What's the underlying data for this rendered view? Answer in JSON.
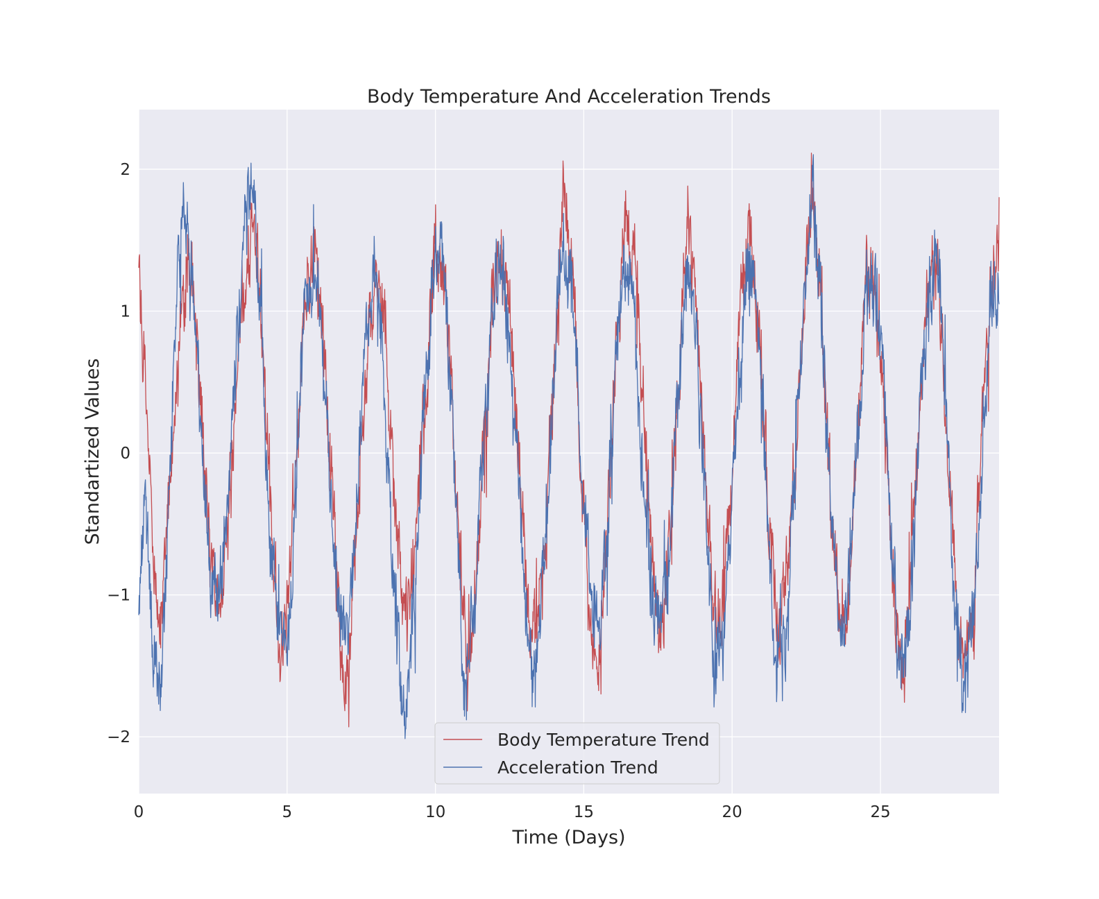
{
  "chart_data": {
    "type": "line",
    "title": "Body Temperature And Acceleration Trends",
    "xlabel": "Time (Days)",
    "ylabel": "Standartized Values",
    "xlim": [
      0,
      29
    ],
    "ylim": [
      -2.4,
      2.42
    ],
    "xticks": [
      0,
      5,
      10,
      15,
      20,
      25
    ],
    "yticks": [
      -2,
      -1,
      0,
      1,
      2
    ],
    "ytick_labels": [
      "−2",
      "−1",
      "0",
      "1",
      "2"
    ],
    "grid": true,
    "legend_position": "lower center",
    "period_days": 2.15,
    "series": [
      {
        "name": "Body Temperature Trend",
        "color": "#c44e52",
        "x": [
          0.0,
          0.25,
          0.5,
          0.6,
          0.8,
          1.0,
          1.3,
          1.6,
          1.8,
          2.1,
          2.4,
          2.7,
          3.0,
          3.3,
          3.6,
          3.9,
          4.2,
          4.5,
          4.8,
          5.0,
          5.3,
          5.6,
          5.9,
          6.2,
          6.5,
          6.8,
          7.0,
          7.2,
          7.5,
          7.8,
          8.1,
          8.4,
          8.7,
          9.0,
          9.3,
          9.7,
          10.0,
          10.3,
          10.6,
          10.9,
          11.1,
          11.4,
          11.7,
          12.0,
          12.2,
          12.6,
          12.9,
          13.2,
          13.5,
          13.8,
          14.1,
          14.3,
          14.6,
          14.9,
          15.2,
          15.5,
          15.8,
          16.1,
          16.4,
          16.8,
          17.1,
          17.4,
          17.7,
          18.0,
          18.3,
          18.5,
          18.8,
          19.1,
          19.4,
          19.7,
          20.0,
          20.3,
          20.6,
          20.9,
          21.2,
          21.5,
          21.8,
          22.1,
          22.4,
          22.7,
          23.0,
          23.3,
          23.6,
          23.9,
          24.2,
          24.5,
          24.8,
          25.1,
          25.4,
          25.7,
          26.0,
          26.3,
          26.6,
          26.9,
          27.2,
          27.5,
          27.8,
          28.1,
          28.4,
          28.7,
          29.0
        ],
        "values": [
          1.4,
          0.3,
          -0.8,
          -1.2,
          -1.0,
          -0.4,
          0.6,
          1.3,
          1.2,
          0.4,
          -0.7,
          -1.1,
          -0.5,
          0.5,
          1.3,
          1.6,
          0.7,
          -0.6,
          -1.3,
          -1.2,
          -0.1,
          1.0,
          1.5,
          0.9,
          -0.3,
          -1.4,
          -1.8,
          -1.1,
          0.1,
          1.1,
          1.3,
          0.5,
          -0.6,
          -1.2,
          -0.6,
          0.5,
          1.5,
          1.2,
          0.2,
          -1.0,
          -1.6,
          -0.8,
          0.3,
          1.2,
          1.5,
          0.8,
          -0.4,
          -1.2,
          -1.2,
          -0.3,
          0.9,
          2.0,
          1.3,
          -0.1,
          -1.2,
          -1.5,
          -0.6,
          0.8,
          1.6,
          1.2,
          0.0,
          -1.1,
          -1.2,
          -0.3,
          1.0,
          1.7,
          1.0,
          -0.2,
          -1.2,
          -1.1,
          -0.2,
          1.2,
          1.6,
          0.9,
          -0.3,
          -1.1,
          -1.0,
          -0.1,
          1.0,
          1.9,
          1.0,
          -0.3,
          -1.1,
          -1.0,
          0.0,
          1.1,
          1.2,
          0.4,
          -0.8,
          -1.6,
          -0.9,
          0.3,
          1.2,
          1.3,
          0.3,
          -0.8,
          -1.5,
          -1.3,
          0.1,
          1.3,
          1.4
        ]
      },
      {
        "name": "Acceleration Trend",
        "color": "#4c72b0",
        "x": [
          0.0,
          0.2,
          0.5,
          0.7,
          0.9,
          1.1,
          1.3,
          1.5,
          1.8,
          2.1,
          2.4,
          2.7,
          3.0,
          3.3,
          3.6,
          3.8,
          4.1,
          4.4,
          4.7,
          5.0,
          5.3,
          5.6,
          5.9,
          6.2,
          6.5,
          6.8,
          7.0,
          7.3,
          7.6,
          7.9,
          8.2,
          8.5,
          8.8,
          9.0,
          9.3,
          9.6,
          9.9,
          10.2,
          10.5,
          10.8,
          11.0,
          11.3,
          11.6,
          11.9,
          12.2,
          12.5,
          12.8,
          13.1,
          13.4,
          13.7,
          14.0,
          14.3,
          14.6,
          14.9,
          15.2,
          15.5,
          15.8,
          16.1,
          16.4,
          16.7,
          17.0,
          17.3,
          17.6,
          17.9,
          18.2,
          18.5,
          18.8,
          19.1,
          19.4,
          19.7,
          20.0,
          20.3,
          20.6,
          20.9,
          21.2,
          21.5,
          21.8,
          22.1,
          22.4,
          22.7,
          23.0,
          23.3,
          23.6,
          23.9,
          24.2,
          24.5,
          24.8,
          25.1,
          25.4,
          25.7,
          26.0,
          26.3,
          26.6,
          26.9,
          27.2,
          27.5,
          27.8,
          28.1,
          28.4,
          28.7,
          29.0
        ],
        "values": [
          -1.2,
          -0.3,
          -1.4,
          -1.5,
          -0.9,
          0.2,
          1.2,
          1.7,
          1.3,
          0.1,
          -0.9,
          -1.1,
          -0.3,
          0.8,
          1.6,
          1.9,
          1.0,
          -0.6,
          -1.2,
          -1.4,
          -0.2,
          1.0,
          1.3,
          0.8,
          -0.4,
          -1.2,
          -1.4,
          -0.6,
          0.8,
          1.3,
          0.7,
          -0.5,
          -1.5,
          -1.9,
          -1.0,
          0.2,
          1.2,
          1.5,
          0.5,
          -0.9,
          -1.7,
          -1.1,
          0.0,
          1.0,
          1.3,
          0.8,
          -0.3,
          -1.2,
          -1.5,
          -0.6,
          0.7,
          1.5,
          1.3,
          0.0,
          -1.0,
          -1.3,
          -0.6,
          0.8,
          1.4,
          1.0,
          -0.2,
          -1.0,
          -1.3,
          -0.5,
          0.5,
          1.3,
          0.8,
          -0.4,
          -1.5,
          -1.4,
          -0.4,
          0.8,
          1.5,
          0.8,
          -0.5,
          -1.5,
          -1.3,
          -0.2,
          1.0,
          1.8,
          1.1,
          -0.3,
          -1.3,
          -1.0,
          0.0,
          1.1,
          1.3,
          0.5,
          -0.8,
          -1.5,
          -1.1,
          0.1,
          1.1,
          1.4,
          0.4,
          -0.9,
          -1.8,
          -1.2,
          -0.2,
          1.0,
          1.2
        ]
      }
    ]
  }
}
